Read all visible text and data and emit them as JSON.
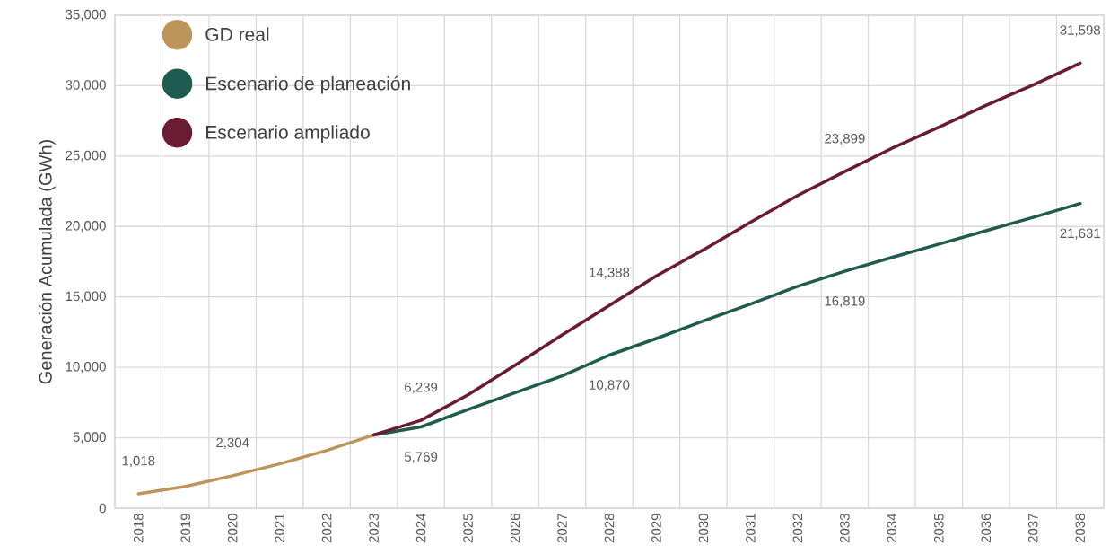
{
  "chart_data": {
    "type": "line",
    "ylabel": "Generación Acumulada (GWh)",
    "categories": [
      "2018",
      "2019",
      "2020",
      "2021",
      "2022",
      "2023",
      "2024",
      "2025",
      "2026",
      "2027",
      "2028",
      "2029",
      "2030",
      "2031",
      "2032",
      "2033",
      "2034",
      "2035",
      "2036",
      "2037",
      "2038"
    ],
    "ylim": [
      0,
      35000
    ],
    "yticks": [
      0,
      {
        "value": 5000,
        "label": "5,000"
      },
      {
        "value": 10000,
        "label": "10,000"
      },
      {
        "value": 15000,
        "label": "15,000"
      },
      {
        "value": 20000,
        "label": "20,000"
      },
      {
        "value": 25000,
        "label": "25,000"
      },
      {
        "value": 30000,
        "label": "30,000"
      },
      {
        "value": 35000,
        "label": "35,000"
      }
    ],
    "grid": true,
    "legend": "top left",
    "marker": "none",
    "line_style": "solid",
    "series": [
      {
        "name": "GD real",
        "color": "#BC955C",
        "values": [
          1018,
          1550,
          2304,
          3150,
          4100,
          5200,
          null,
          null,
          null,
          null,
          null,
          null,
          null,
          null,
          null,
          null,
          null,
          null,
          null,
          null,
          null
        ],
        "value_labels": [
          "1,018",
          null,
          "2,304",
          null,
          null,
          null,
          null,
          null,
          null,
          null,
          null,
          null,
          null,
          null,
          null,
          null,
          null,
          null,
          null,
          null,
          null
        ]
      },
      {
        "name": "Escenario de planeación",
        "color": "#1F5B4E",
        "values": [
          null,
          null,
          null,
          null,
          null,
          5200,
          5769,
          7000,
          8200,
          9400,
          10870,
          12050,
          13300,
          14500,
          15750,
          16819,
          17800,
          18750,
          19700,
          20650,
          21631
        ],
        "value_labels": [
          null,
          null,
          null,
          null,
          null,
          null,
          "5,769",
          null,
          null,
          null,
          "10,870",
          null,
          null,
          null,
          null,
          "16,819",
          null,
          null,
          null,
          null,
          "21,631"
        ]
      },
      {
        "name": "Escenario ampliado",
        "color": "#691C32",
        "values": [
          null,
          null,
          null,
          null,
          null,
          5200,
          6239,
          8050,
          10150,
          12300,
          14388,
          16500,
          18350,
          20300,
          22200,
          23899,
          25550,
          27050,
          28600,
          30050,
          31598
        ],
        "value_labels": [
          null,
          null,
          null,
          null,
          null,
          null,
          "6,239",
          null,
          null,
          null,
          "14,388",
          null,
          null,
          null,
          null,
          "23,899",
          null,
          null,
          null,
          null,
          "31,598"
        ]
      }
    ]
  }
}
